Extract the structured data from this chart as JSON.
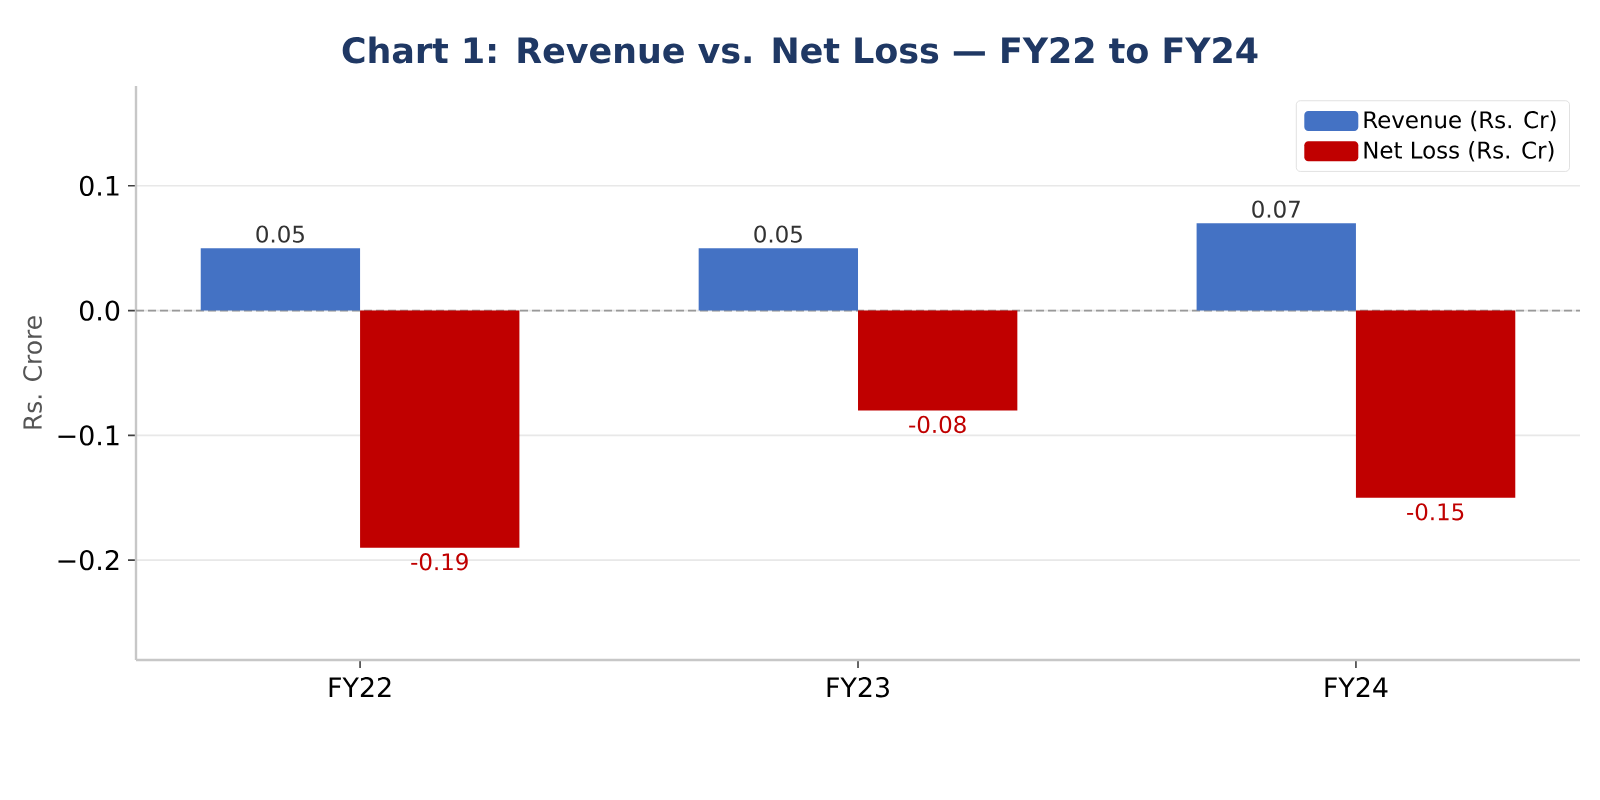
{
  "chart_data": {
    "type": "bar",
    "title": "Chart 1: Revenue vs. Net Loss — FY22 to FY24",
    "ylabel": "Rs. Crore",
    "categories": [
      "FY22",
      "FY23",
      "FY24"
    ],
    "series": [
      {
        "name": "Revenue (Rs. Cr)",
        "color": "#4472c4",
        "values": [
          0.05,
          0.05,
          0.07
        ]
      },
      {
        "name": "Net Loss (Rs. Cr)",
        "color": "#c00000",
        "values": [
          -0.19,
          -0.08,
          -0.15
        ]
      }
    ],
    "ylim": [
      -0.28,
      0.18
    ],
    "yticks": [
      {
        "value": -0.2,
        "label": "−0.2"
      },
      {
        "value": -0.1,
        "label": "−0.1"
      },
      {
        "value": 0,
        "label": "0.0"
      },
      0.1
    ],
    "grid": "y",
    "legend": "top right",
    "data_labels": true,
    "ref_lines": [
      {
        "axis": "y",
        "value": 0,
        "color": "#999999",
        "line_style": "dashed"
      }
    ]
  }
}
